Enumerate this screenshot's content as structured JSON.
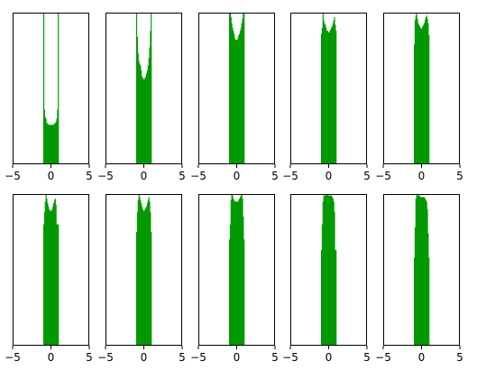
{
  "chart_data": [
    {
      "type": "bar",
      "xlim": [
        -5,
        5
      ],
      "xticks": [
        -5,
        0,
        5
      ],
      "tick_labels": [
        "−5",
        "0",
        "5"
      ],
      "bin_edges": [
        -1,
        -0.9,
        -0.8,
        -0.7,
        -0.6,
        -0.5,
        -0.4,
        -0.3,
        -0.2,
        -0.1,
        0,
        0.1,
        0.2,
        0.3,
        0.4,
        0.5,
        0.6,
        0.7,
        0.8,
        0.9,
        1
      ],
      "values": [
        1.0,
        0.36,
        0.31,
        0.3,
        0.27,
        0.27,
        0.26,
        0.26,
        0.26,
        0.26,
        0.26,
        0.26,
        0.26,
        0.26,
        0.27,
        0.27,
        0.28,
        0.3,
        0.36,
        1.0
      ],
      "color": "#009900"
    },
    {
      "type": "bar",
      "xlim": [
        -5,
        5
      ],
      "xticks": [
        -5,
        0,
        5
      ],
      "tick_labels": [
        "−5",
        "0",
        "5"
      ],
      "bin_edges": [
        -1,
        -0.9,
        -0.8,
        -0.7,
        -0.6,
        -0.5,
        -0.4,
        -0.3,
        -0.2,
        -0.1,
        0,
        0.1,
        0.2,
        0.3,
        0.4,
        0.5,
        0.6,
        0.7,
        0.8,
        0.9,
        1
      ],
      "values": [
        1.0,
        0.84,
        0.73,
        0.68,
        0.66,
        0.65,
        0.62,
        0.58,
        0.57,
        0.56,
        0.56,
        0.57,
        0.58,
        0.6,
        0.62,
        0.65,
        0.7,
        0.77,
        0.88,
        1.0
      ],
      "color": "#009900"
    },
    {
      "type": "bar",
      "xlim": [
        -5,
        5
      ],
      "xticks": [
        -5,
        0,
        5
      ],
      "tick_labels": [
        "−5",
        "0",
        "5"
      ],
      "bin_edges": [
        -1,
        -0.9,
        -0.8,
        -0.7,
        -0.6,
        -0.5,
        -0.4,
        -0.3,
        -0.2,
        -0.1,
        0,
        0.1,
        0.2,
        0.3,
        0.4,
        0.5,
        0.6,
        0.7,
        0.8,
        0.9,
        1
      ],
      "values": [
        1.0,
        1.0,
        0.97,
        0.93,
        0.9,
        0.88,
        0.86,
        0.83,
        0.82,
        0.82,
        0.82,
        0.83,
        0.85,
        0.86,
        0.88,
        0.9,
        0.93,
        0.96,
        1.0,
        1.0
      ],
      "color": "#009900"
    },
    {
      "type": "bar",
      "xlim": [
        -5,
        5
      ],
      "xticks": [
        -5,
        0,
        5
      ],
      "tick_labels": [
        "−5",
        "0",
        "5"
      ],
      "bin_edges": [
        -1,
        -0.9,
        -0.8,
        -0.7,
        -0.6,
        -0.5,
        -0.4,
        -0.3,
        -0.2,
        -0.1,
        0,
        0.1,
        0.2,
        0.3,
        0.4,
        0.5,
        0.6,
        0.7,
        0.8,
        0.9,
        1
      ],
      "values": [
        0.86,
        0.9,
        1.0,
        0.95,
        0.93,
        0.92,
        0.9,
        0.88,
        0.88,
        0.87,
        0.87,
        0.88,
        0.89,
        0.9,
        0.91,
        0.93,
        0.95,
        0.97,
        0.92,
        0.88
      ],
      "color": "#009900"
    },
    {
      "type": "bar",
      "xlim": [
        -5,
        5
      ],
      "xticks": [
        -5,
        0,
        5
      ],
      "tick_labels": [
        "−5",
        "0",
        "5"
      ],
      "bin_edges": [
        -1,
        -0.9,
        -0.8,
        -0.7,
        -0.6,
        -0.5,
        -0.4,
        -0.3,
        -0.2,
        -0.1,
        0,
        0.1,
        0.2,
        0.3,
        0.4,
        0.5,
        0.6,
        0.7,
        0.8,
        0.9,
        1
      ],
      "values": [
        0.79,
        0.95,
        0.98,
        1.0,
        0.96,
        0.93,
        0.92,
        0.91,
        0.9,
        0.89,
        0.9,
        0.91,
        0.92,
        0.93,
        0.95,
        0.97,
        0.98,
        0.96,
        0.93,
        0.85
      ],
      "color": "#009900"
    },
    {
      "type": "bar",
      "xlim": [
        -5,
        5
      ],
      "xticks": [
        -5,
        0,
        5
      ],
      "tick_labels": [
        "−5",
        "0",
        "5"
      ],
      "bin_edges": [
        -1,
        -0.9,
        -0.8,
        -0.7,
        -0.6,
        -0.5,
        -0.4,
        -0.3,
        -0.2,
        -0.1,
        0,
        0.1,
        0.2,
        0.3,
        0.4,
        0.5,
        0.6,
        0.7,
        0.8,
        0.9,
        1
      ],
      "values": [
        0.8,
        0.88,
        0.95,
        1.0,
        0.97,
        0.94,
        0.92,
        0.9,
        0.89,
        0.89,
        0.89,
        0.9,
        0.92,
        0.94,
        0.96,
        0.97,
        0.93,
        0.8,
        0.8,
        0.8
      ],
      "color": "#009900"
    },
    {
      "type": "bar",
      "xlim": [
        -5,
        5
      ],
      "xticks": [
        -5,
        0,
        5
      ],
      "tick_labels": [
        "−5",
        "0",
        "5"
      ],
      "bin_edges": [
        -1,
        -0.9,
        -0.8,
        -0.7,
        -0.6,
        -0.5,
        -0.4,
        -0.3,
        -0.2,
        -0.1,
        0,
        0.1,
        0.2,
        0.3,
        0.4,
        0.5,
        0.6,
        0.7,
        0.8,
        0.9,
        1
      ],
      "values": [
        0.75,
        0.88,
        0.96,
        1.0,
        0.98,
        0.96,
        0.94,
        0.92,
        0.9,
        0.89,
        0.89,
        0.9,
        0.91,
        0.92,
        0.94,
        0.96,
        0.98,
        0.95,
        0.88,
        0.75
      ],
      "color": "#009900"
    },
    {
      "type": "bar",
      "xlim": [
        -5,
        5
      ],
      "xticks": [
        -5,
        0,
        5
      ],
      "tick_labels": [
        "−5",
        "0",
        "5"
      ],
      "bin_edges": [
        -1,
        -0.9,
        -0.8,
        -0.7,
        -0.6,
        -0.5,
        -0.4,
        -0.3,
        -0.2,
        -0.1,
        0,
        0.1,
        0.2,
        0.3,
        0.4,
        0.5,
        0.6,
        0.7,
        0.8,
        0.9,
        1
      ],
      "values": [
        0.7,
        0.8,
        0.96,
        1.0,
        0.99,
        0.97,
        0.96,
        0.95,
        0.95,
        0.95,
        0.95,
        0.95,
        0.96,
        0.97,
        0.98,
        0.99,
        1.0,
        0.97,
        0.85,
        0.7
      ],
      "color": "#009900"
    },
    {
      "type": "bar",
      "xlim": [
        -5,
        5
      ],
      "xticks": [
        -5,
        0,
        5
      ],
      "tick_labels": [
        "−5",
        "0",
        "5"
      ],
      "bin_edges": [
        -1,
        -0.9,
        -0.8,
        -0.7,
        -0.6,
        -0.5,
        -0.4,
        -0.3,
        -0.2,
        -0.1,
        0,
        0.1,
        0.2,
        0.3,
        0.4,
        0.5,
        0.6,
        0.7,
        0.8,
        0.9,
        1
      ],
      "values": [
        0.63,
        0.8,
        0.95,
        0.99,
        0.99,
        0.99,
        1.0,
        1.0,
        1.0,
        0.99,
        0.99,
        0.99,
        0.99,
        0.99,
        0.98,
        0.97,
        0.95,
        0.88,
        0.63,
        0.63
      ],
      "color": "#009900"
    },
    {
      "type": "bar",
      "xlim": [
        -5,
        5
      ],
      "xticks": [
        -5,
        0,
        5
      ],
      "tick_labels": [
        "−5",
        "0",
        "5"
      ],
      "bin_edges": [
        -1,
        -0.9,
        -0.8,
        -0.7,
        -0.6,
        -0.5,
        -0.4,
        -0.3,
        -0.2,
        -0.1,
        0,
        0.1,
        0.2,
        0.3,
        0.4,
        0.5,
        0.6,
        0.7,
        0.8,
        0.9,
        1
      ],
      "values": [
        0.58,
        0.78,
        0.97,
        0.99,
        1.0,
        0.99,
        0.99,
        0.99,
        0.98,
        0.98,
        0.98,
        0.98,
        0.98,
        0.98,
        0.97,
        0.96,
        0.95,
        0.9,
        0.74,
        0.58
      ],
      "color": "#009900"
    }
  ]
}
